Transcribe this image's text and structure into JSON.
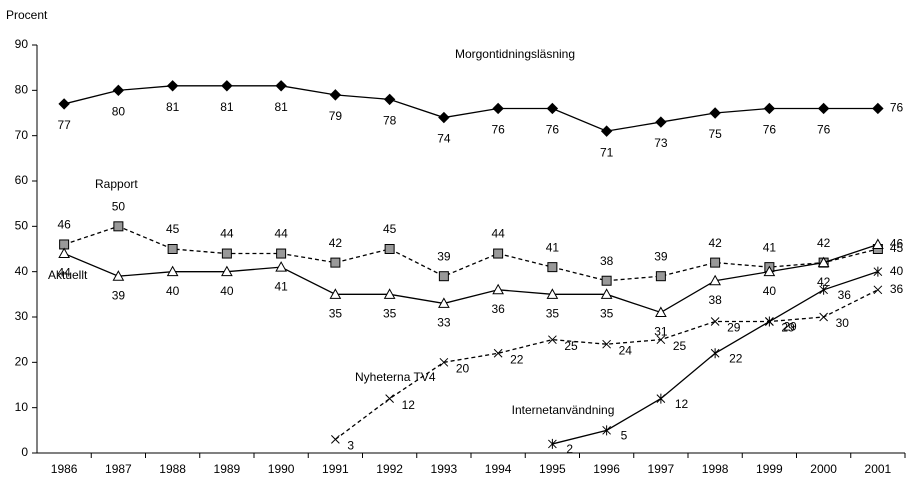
{
  "chart_data": {
    "type": "line",
    "y_axis_label": "Procent",
    "categories": [
      "1986",
      "1987",
      "1988",
      "1989",
      "1990",
      "1991",
      "1992",
      "1993",
      "1994",
      "1995",
      "1996",
      "1997",
      "1998",
      "1999",
      "2000",
      "2001"
    ],
    "ylim": [
      0,
      90
    ],
    "yticks": [
      0,
      10,
      20,
      30,
      40,
      50,
      60,
      70,
      80,
      90
    ],
    "series": [
      {
        "name": "Morgontidningsläsning",
        "color": "#000000",
        "marker": "diamond",
        "dashed": false,
        "values": [
          77,
          80,
          81,
          81,
          81,
          79,
          78,
          74,
          76,
          76,
          71,
          73,
          75,
          76,
          76,
          76
        ]
      },
      {
        "name": "Rapport",
        "color": "#000000",
        "marker": "square",
        "dashed": true,
        "values": [
          46,
          50,
          45,
          44,
          44,
          42,
          45,
          39,
          44,
          41,
          38,
          39,
          42,
          41,
          42,
          45
        ]
      },
      {
        "name": "Aktuellt",
        "color": "#000000",
        "marker": "triangle",
        "dashed": false,
        "values": [
          44,
          39,
          40,
          40,
          41,
          35,
          35,
          33,
          36,
          35,
          35,
          31,
          38,
          40,
          42,
          46
        ]
      },
      {
        "name": "Nyheterna  TV4",
        "color": "#000000",
        "marker": "x",
        "dashed": true,
        "values": [
          null,
          null,
          null,
          null,
          null,
          3,
          12,
          20,
          22,
          25,
          24,
          25,
          29,
          29,
          30,
          36
        ]
      },
      {
        "name": "Internetanvändning",
        "color": "#000000",
        "marker": "asterisk",
        "dashed": false,
        "values": [
          null,
          null,
          null,
          null,
          null,
          null,
          null,
          null,
          null,
          2,
          5,
          12,
          22,
          29,
          36,
          40
        ]
      }
    ]
  }
}
